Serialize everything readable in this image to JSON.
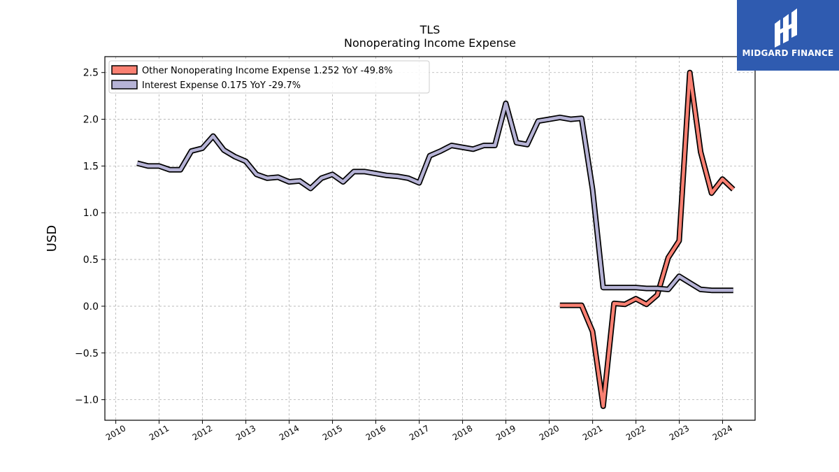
{
  "branding": {
    "name": "MIDGARD FINANCE",
    "color": "#2f5bb0",
    "icon": "midgard-logo-icon"
  },
  "chart_data": {
    "type": "line",
    "title": "TLS",
    "subtitle": "Nonoperating Income Expense",
    "xlabel": "",
    "ylabel": "USD",
    "xlim": [
      "2009-10-01",
      "2024-10-01"
    ],
    "ylim": [
      -1.22,
      2.67
    ],
    "grid": true,
    "legend_position": "top-left",
    "x_ticks": [
      "2010",
      "2011",
      "2012",
      "2013",
      "2014",
      "2015",
      "2016",
      "2017",
      "2018",
      "2019",
      "2020",
      "2021",
      "2022",
      "2023",
      "2024"
    ],
    "y_ticks": [
      "−1.0",
      "−0.5",
      "0.0",
      "0.5",
      "1.0",
      "1.5",
      "2.0",
      "2.5"
    ],
    "series": [
      {
        "name": "Other Nonoperating Income Expense",
        "legend_label": "Other Nonoperating Income Expense  1.252 YoY -49.8%",
        "color": "#fa8072",
        "x": [
          "2020-03-31",
          "2020-06-30",
          "2020-09-30",
          "2020-12-31",
          "2021-03-31",
          "2021-06-30",
          "2021-09-30",
          "2021-12-31",
          "2022-03-31",
          "2022-06-30",
          "2022-09-30",
          "2022-12-31",
          "2023-03-31",
          "2023-06-30",
          "2023-09-30",
          "2023-12-31",
          "2024-03-31"
        ],
        "y": [
          0.01,
          0.01,
          0.01,
          -0.27,
          -1.07,
          0.03,
          0.02,
          0.08,
          0.02,
          0.12,
          0.52,
          0.7,
          2.5,
          1.65,
          1.21,
          1.36,
          1.25
        ]
      },
      {
        "name": "Interest Expense",
        "legend_label": "Interest Expense  0.175 YoY -29.7%",
        "color": "#b6b3d6",
        "x": [
          "2010-06-30",
          "2010-09-30",
          "2010-12-31",
          "2011-03-31",
          "2011-06-30",
          "2011-09-30",
          "2011-12-31",
          "2012-03-31",
          "2012-06-30",
          "2012-09-30",
          "2012-12-31",
          "2013-03-31",
          "2013-06-30",
          "2013-09-30",
          "2013-12-31",
          "2014-03-31",
          "2014-06-30",
          "2014-09-30",
          "2014-12-31",
          "2015-03-31",
          "2015-06-30",
          "2015-09-30",
          "2015-12-31",
          "2016-03-31",
          "2016-06-30",
          "2016-09-30",
          "2016-12-31",
          "2017-03-31",
          "2017-06-30",
          "2017-09-30",
          "2017-12-31",
          "2018-03-31",
          "2018-06-30",
          "2018-09-30",
          "2018-12-31",
          "2019-03-31",
          "2019-06-30",
          "2019-09-30",
          "2019-12-31",
          "2020-03-31",
          "2020-06-30",
          "2020-09-30",
          "2020-12-31",
          "2021-03-31",
          "2021-06-30",
          "2021-09-30",
          "2021-12-31",
          "2022-03-31",
          "2022-06-30",
          "2022-09-30",
          "2022-12-31",
          "2023-03-31",
          "2023-06-30",
          "2023-09-30",
          "2023-12-31",
          "2024-03-31"
        ],
        "y": [
          1.53,
          1.5,
          1.5,
          1.46,
          1.46,
          1.66,
          1.69,
          1.82,
          1.67,
          1.6,
          1.55,
          1.41,
          1.37,
          1.38,
          1.33,
          1.34,
          1.26,
          1.37,
          1.41,
          1.33,
          1.44,
          1.44,
          1.42,
          1.4,
          1.39,
          1.37,
          1.32,
          1.61,
          1.66,
          1.72,
          1.7,
          1.68,
          1.72,
          1.72,
          2.17,
          1.75,
          1.73,
          1.98,
          2.0,
          2.02,
          2.0,
          2.01,
          1.25,
          0.2,
          0.2,
          0.2,
          0.2,
          0.19,
          0.19,
          0.18,
          0.32,
          0.25,
          0.18,
          0.17,
          0.17,
          0.17
        ]
      }
    ]
  }
}
